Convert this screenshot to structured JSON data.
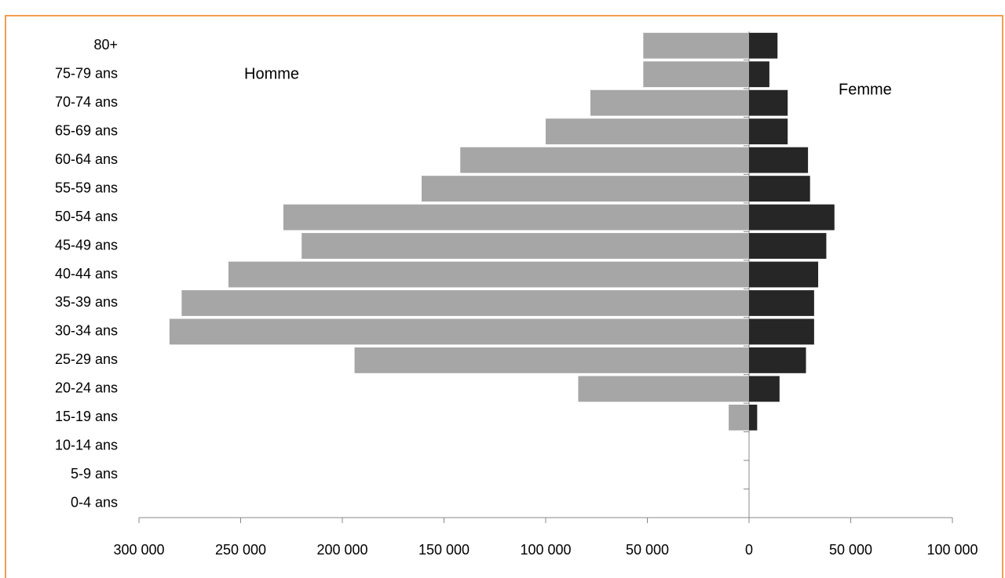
{
  "chart_data": {
    "type": "pyramid",
    "categories": [
      "0-4 ans",
      "5-9 ans",
      "10-14 ans",
      "15-19 ans",
      "20-24 ans",
      "25-29 ans",
      "30-34 ans",
      "35-39 ans",
      "40-44 ans",
      "45-49 ans",
      "50-54 ans",
      "55-59 ans",
      "60-64 ans",
      "65-69 ans",
      "70-74 ans",
      "75-79 ans",
      "80+"
    ],
    "series": [
      {
        "name": "Homme",
        "color": "#a6a6a6",
        "values": [
          0,
          0,
          0,
          -10000,
          -84000,
          -194000,
          -285000,
          -279000,
          -256000,
          -220000,
          -229000,
          -161000,
          -142000,
          -100000,
          -78000,
          -52000,
          -52000
        ]
      },
      {
        "name": "Femme",
        "color": "#262626",
        "values": [
          0,
          0,
          0,
          4000,
          15000,
          28000,
          32000,
          32000,
          34000,
          38000,
          42000,
          30000,
          29000,
          19000,
          19000,
          10000,
          14000
        ]
      }
    ],
    "xlim": [
      -300000,
      100000
    ],
    "xticks": [
      {
        "value": -300000,
        "label": "300 000"
      },
      {
        "value": -250000,
        "label": "250 000"
      },
      {
        "value": -200000,
        "label": "200 000"
      },
      {
        "value": -150000,
        "label": "150 000"
      },
      {
        "value": -100000,
        "label": "100 000"
      },
      {
        "value": -50000,
        "label": "50 000"
      },
      0,
      {
        "value": 50000,
        "label": "50 000"
      },
      {
        "value": 100000,
        "label": "100 000"
      }
    ]
  }
}
